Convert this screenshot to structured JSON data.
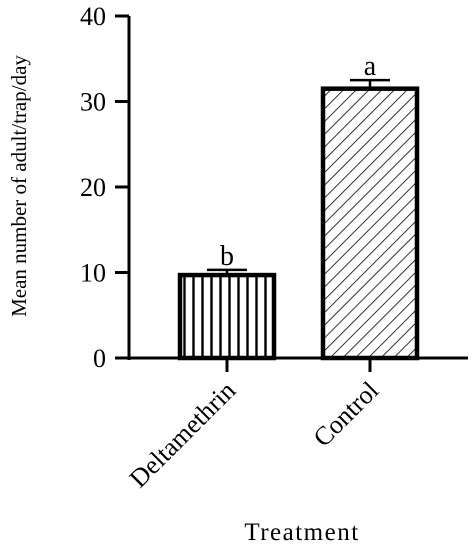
{
  "chart_data": {
    "type": "bar",
    "categories": [
      "Deltamethrin",
      "Control"
    ],
    "values": [
      9.7,
      31.5
    ],
    "errors": [
      0.6,
      1.0
    ],
    "letters": [
      "b",
      "a"
    ],
    "patterns": [
      "vertical-lines",
      "diagonal-lines"
    ],
    "xlabel": "Treatment",
    "ylabel": "Mean number of adult/trap/day",
    "ylim": [
      0,
      40
    ],
    "yticks": [
      0,
      10,
      20,
      30,
      40
    ],
    "grid": false,
    "colors": {
      "bar_stroke": "#000000",
      "fill": "#ffffff"
    }
  }
}
